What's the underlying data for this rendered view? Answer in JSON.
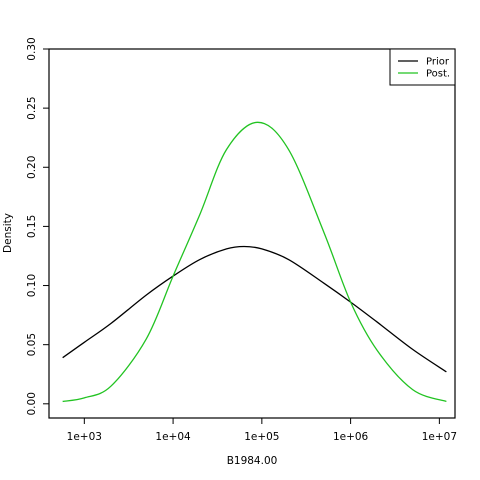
{
  "chart_data": {
    "type": "line",
    "x_scale": "log10",
    "xlabel": "B1984.00",
    "ylabel": "Density",
    "xlim": [
      400,
      15000000
    ],
    "ylim": [
      -0.012,
      0.3
    ],
    "x_ticks": [
      {
        "value": 1000,
        "label": "1e+03"
      },
      {
        "value": 10000,
        "label": "1e+04"
      },
      {
        "value": 100000,
        "label": "1e+05"
      },
      {
        "value": 1000000,
        "label": "1e+06"
      },
      {
        "value": 10000000,
        "label": "1e+07"
      }
    ],
    "y_ticks": [
      {
        "value": 0.0,
        "label": "0.00"
      },
      {
        "value": 0.05,
        "label": "0.05"
      },
      {
        "value": 0.1,
        "label": "0.10"
      },
      {
        "value": 0.15,
        "label": "0.15"
      },
      {
        "value": 0.2,
        "label": "0.20"
      },
      {
        "value": 0.25,
        "label": "0.25"
      },
      {
        "value": 0.3,
        "label": "0.30"
      }
    ],
    "legend_position": "top-right",
    "series": [
      {
        "name": "Prior",
        "color": "#000000",
        "points": [
          {
            "x": 570,
            "y": 0.039
          },
          {
            "x": 1000,
            "y": 0.052
          },
          {
            "x": 2000,
            "y": 0.068
          },
          {
            "x": 5000,
            "y": 0.092
          },
          {
            "x": 10000,
            "y": 0.108
          },
          {
            "x": 20000,
            "y": 0.122
          },
          {
            "x": 40000,
            "y": 0.131
          },
          {
            "x": 63000,
            "y": 0.133
          },
          {
            "x": 100000,
            "y": 0.131
          },
          {
            "x": 200000,
            "y": 0.122
          },
          {
            "x": 500000,
            "y": 0.102
          },
          {
            "x": 1000000,
            "y": 0.086
          },
          {
            "x": 2000000,
            "y": 0.069
          },
          {
            "x": 5000000,
            "y": 0.046
          },
          {
            "x": 12000000,
            "y": 0.027
          }
        ]
      },
      {
        "name": "Post.",
        "color": "#22c322",
        "points": [
          {
            "x": 570,
            "y": 0.002
          },
          {
            "x": 1000,
            "y": 0.005
          },
          {
            "x": 2000,
            "y": 0.015
          },
          {
            "x": 5000,
            "y": 0.055
          },
          {
            "x": 10000,
            "y": 0.108
          },
          {
            "x": 20000,
            "y": 0.16
          },
          {
            "x": 40000,
            "y": 0.215
          },
          {
            "x": 90000,
            "y": 0.238
          },
          {
            "x": 200000,
            "y": 0.215
          },
          {
            "x": 500000,
            "y": 0.145
          },
          {
            "x": 1000000,
            "y": 0.086
          },
          {
            "x": 2000000,
            "y": 0.045
          },
          {
            "x": 5000000,
            "y": 0.012
          },
          {
            "x": 12000000,
            "y": 0.002
          }
        ]
      }
    ]
  }
}
